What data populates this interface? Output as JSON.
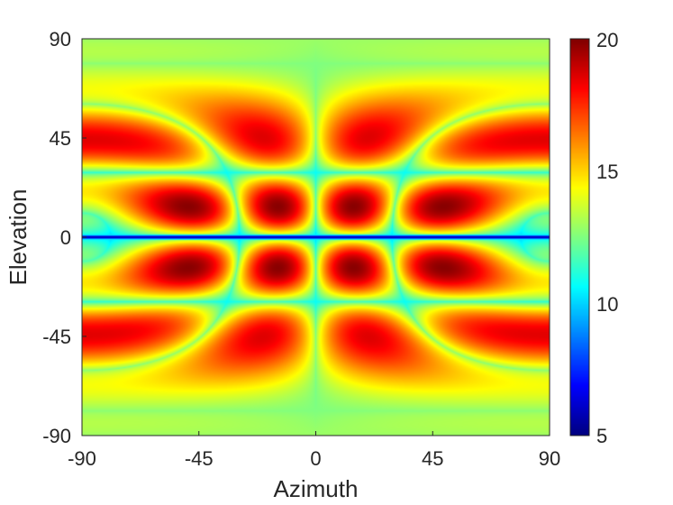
{
  "chart_data": {
    "type": "heatmap",
    "title": "",
    "xlabel": "Azimuth",
    "ylabel": "Elevation",
    "xlim": [
      -90,
      90
    ],
    "ylim": [
      -90,
      90
    ],
    "xticks": [
      "-90",
      "-45",
      "0",
      "45",
      "90"
    ],
    "yticks": [
      "90",
      "45",
      "0",
      "-45",
      "-90"
    ],
    "colormap": "jet",
    "colorbar": {
      "range": [
        5,
        20
      ],
      "ticks": [
        "20",
        "15",
        "10",
        "5"
      ]
    },
    "pattern": {
      "description_of_values": "interference-like pattern: maxima ~20 near (±10, ±10), minima ~5 along elevation 0 and azimuth 0",
      "peak_value": 20,
      "min_value": 5,
      "background_value": 14
    },
    "grid": false
  }
}
